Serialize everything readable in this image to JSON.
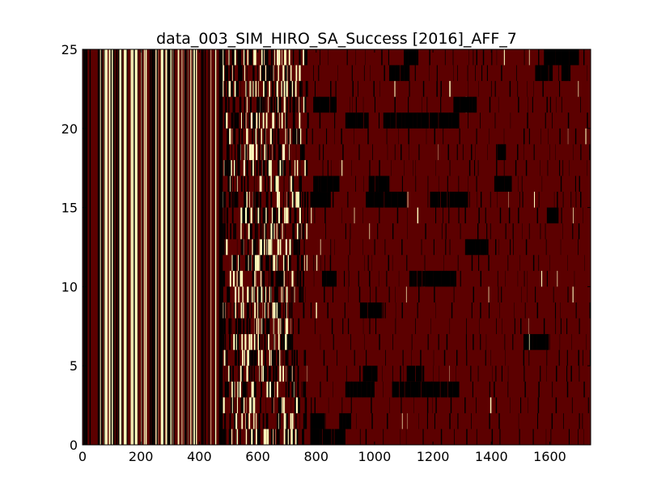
{
  "chart_data": {
    "type": "heatmap",
    "title": "data_003_SIM_HIRO_SA_Success [2016]_AFF_7",
    "xlabel": "",
    "ylabel": "",
    "xlim": [
      0,
      1740
    ],
    "ylim": [
      0,
      25
    ],
    "xticks": [
      0,
      200,
      400,
      600,
      800,
      1000,
      1200,
      1400,
      1600
    ],
    "yticks": [
      0,
      5,
      10,
      15,
      20,
      25
    ],
    "rows": 25,
    "colormap": [
      "#000000",
      "#5c0000",
      "#ffffc0"
    ],
    "background_value_color": "#5c0000",
    "column_regions": [
      {
        "x_range": [
          0,
          480
        ],
        "pattern": "full-height vertical stripes, alternating dark red, black and pale yellow"
      },
      {
        "x_range": [
          480,
          770
        ],
        "pattern": "mixed per-row segments with pale yellow and black streaks"
      },
      {
        "x_range": [
          770,
          1740
        ],
        "pattern": "mostly dark red with scattered black blocks per row"
      }
    ],
    "black_blocks": [
      {
        "row": 0,
        "x": [
          780,
          900
        ]
      },
      {
        "row": 1,
        "x": [
          780,
          830
        ]
      },
      {
        "row": 1,
        "x": [
          880,
          920
        ]
      },
      {
        "row": 3,
        "x": [
          900,
          1000
        ]
      },
      {
        "row": 3,
        "x": [
          1060,
          1290
        ]
      },
      {
        "row": 4,
        "x": [
          960,
          1010
        ]
      },
      {
        "row": 4,
        "x": [
          1110,
          1170
        ]
      },
      {
        "row": 6,
        "x": [
          1510,
          1600
        ]
      },
      {
        "row": 8,
        "x": [
          950,
          1030
        ]
      },
      {
        "row": 10,
        "x": [
          820,
          870
        ]
      },
      {
        "row": 10,
        "x": [
          1120,
          1280
        ]
      },
      {
        "row": 12,
        "x": [
          1310,
          1390
        ]
      },
      {
        "row": 14,
        "x": [
          1590,
          1630
        ]
      },
      {
        "row": 15,
        "x": [
          780,
          850
        ]
      },
      {
        "row": 15,
        "x": [
          970,
          1110
        ]
      },
      {
        "row": 15,
        "x": [
          1190,
          1320
        ]
      },
      {
        "row": 16,
        "x": [
          790,
          880
        ]
      },
      {
        "row": 16,
        "x": [
          980,
          1050
        ]
      },
      {
        "row": 16,
        "x": [
          1410,
          1470
        ]
      },
      {
        "row": 18,
        "x": [
          1420,
          1450
        ]
      },
      {
        "row": 20,
        "x": [
          900,
          980
        ]
      },
      {
        "row": 20,
        "x": [
          1030,
          1290
        ]
      },
      {
        "row": 21,
        "x": [
          790,
          870
        ]
      },
      {
        "row": 21,
        "x": [
          1270,
          1350
        ]
      },
      {
        "row": 23,
        "x": [
          1050,
          1120
        ]
      },
      {
        "row": 23,
        "x": [
          1550,
          1610
        ]
      },
      {
        "row": 23,
        "x": [
          1640,
          1670
        ]
      },
      {
        "row": 24,
        "x": [
          1100,
          1150
        ]
      },
      {
        "row": 24,
        "x": [
          1580,
          1700
        ]
      }
    ]
  }
}
